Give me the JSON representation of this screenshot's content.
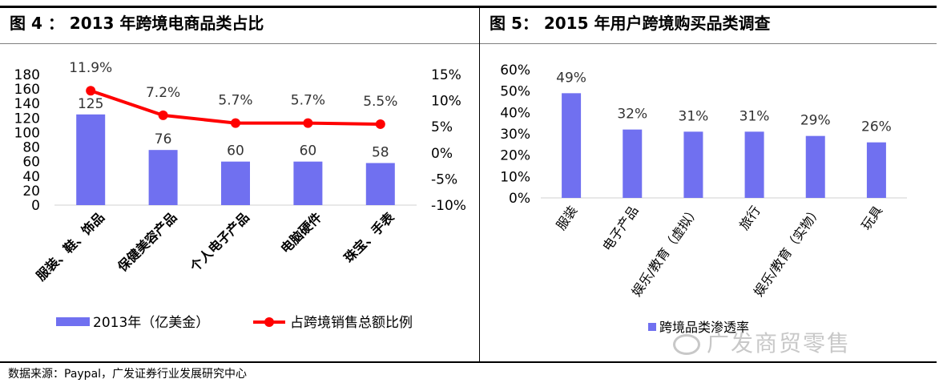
{
  "source_note": "数据来源：Paypal，广发证券行业发展研究中心",
  "watermark": "广发商贸零售",
  "chart_data": [
    {
      "type": "bar+line",
      "title": "图 4 ： 2013 年跨境电商品类占比",
      "categories": [
        "服装、鞋、饰品",
        "保健美容产品",
        "个人电子产品",
        "电脑硬件",
        "珠宝、手表"
      ],
      "series": [
        {
          "name": "2013年（亿美金）",
          "type": "bar",
          "axis": "left",
          "color": "#7070f0",
          "values": [
            125,
            76,
            60,
            60,
            58
          ],
          "labels": [
            "125",
            "76",
            "60",
            "60",
            "58"
          ]
        },
        {
          "name": "占跨境销售总额比例",
          "type": "line",
          "axis": "right",
          "color": "#ff0000",
          "values": [
            11.9,
            7.2,
            5.7,
            5.7,
            5.5
          ],
          "labels": [
            "11.9%",
            "7.2%",
            "5.7%",
            "5.7%",
            "5.5%"
          ]
        }
      ],
      "y_left": {
        "min": 0,
        "max": 180,
        "ticks": [
          "0",
          "20",
          "40",
          "60",
          "80",
          "100",
          "120",
          "140",
          "160",
          "180"
        ]
      },
      "y_right": {
        "min": -10,
        "max": 15,
        "ticks": [
          "-10%",
          "-5%",
          "0%",
          "5%",
          "10%",
          "15%"
        ]
      },
      "legend_position": "bottom"
    },
    {
      "type": "bar",
      "title": "图 5： 2015 年用户跨境购买品类调查",
      "categories": [
        "服装",
        "电子产品",
        "娱乐/教育（虚拟）",
        "旅行",
        "娱乐/教育（实物）",
        "玩具"
      ],
      "series": [
        {
          "name": "跨境品类渗透率",
          "type": "bar",
          "color": "#7070f0",
          "values": [
            49,
            32,
            31,
            31,
            29,
            26
          ],
          "labels": [
            "49%",
            "32%",
            "31%",
            "31%",
            "29%",
            "26%"
          ]
        }
      ],
      "y": {
        "min": 0,
        "max": 60,
        "ticks": [
          "0%",
          "10%",
          "20%",
          "30%",
          "40%",
          "50%",
          "60%"
        ]
      },
      "legend_position": "bottom"
    }
  ]
}
